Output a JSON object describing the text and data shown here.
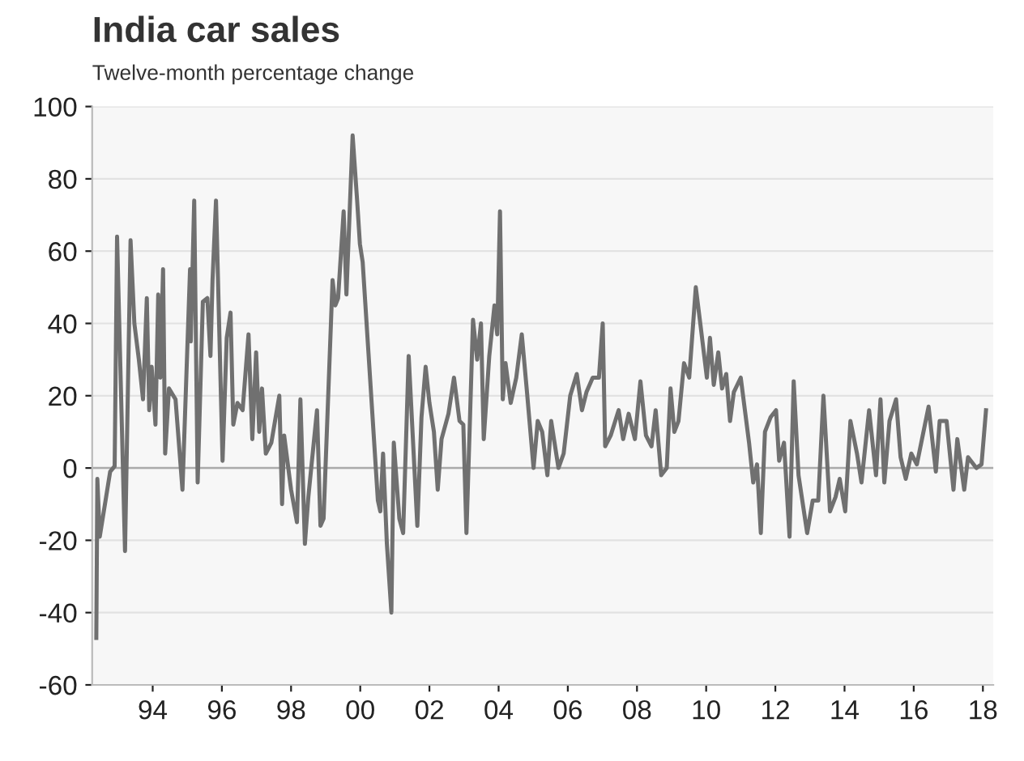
{
  "chart_data": {
    "type": "line",
    "title": "India car sales",
    "subtitle": "Twelve-month percentage change",
    "x": [
      1992.37,
      1992.4,
      1992.47,
      1992.77,
      1992.9,
      1992.97,
      1993.2,
      1993.36,
      1993.47,
      1993.6,
      1993.72,
      1993.83,
      1993.9,
      1993.97,
      1994.08,
      1994.16,
      1994.22,
      1994.3,
      1994.36,
      1994.47,
      1994.66,
      1994.86,
      1995.08,
      1995.1,
      1995.2,
      1995.3,
      1995.45,
      1995.58,
      1995.67,
      1995.73,
      1995.83,
      1996.02,
      1996.14,
      1996.25,
      1996.33,
      1996.45,
      1996.6,
      1996.77,
      1996.88,
      1996.99,
      1997.08,
      1997.16,
      1997.27,
      1997.43,
      1997.66,
      1997.74,
      1997.8,
      1998.0,
      1998.17,
      1998.27,
      1998.4,
      1998.5,
      1998.75,
      1998.85,
      1998.94,
      1999.2,
      1999.28,
      1999.36,
      1999.52,
      1999.6,
      1999.78,
      1999.91,
      1999.99,
      2000.07,
      2000.51,
      2000.58,
      2000.66,
      2000.77,
      2000.9,
      2000.97,
      2001.13,
      2001.24,
      2001.4,
      2001.56,
      2001.65,
      2001.77,
      2001.89,
      2002.0,
      2002.13,
      2002.24,
      2002.35,
      2002.55,
      2002.71,
      2002.87,
      2002.98,
      2003.07,
      2003.26,
      2003.38,
      2003.49,
      2003.57,
      2003.73,
      2003.88,
      2003.96,
      2004.04,
      2004.12,
      2004.2,
      2004.35,
      2004.51,
      2004.67,
      2004.82,
      2005.01,
      2005.13,
      2005.26,
      2005.41,
      2005.52,
      2005.73,
      2005.88,
      2006.07,
      2006.26,
      2006.41,
      2006.54,
      2006.72,
      2006.9,
      2007.01,
      2007.08,
      2007.24,
      2007.47,
      2007.6,
      2007.76,
      2007.94,
      2008.1,
      2008.26,
      2008.42,
      2008.54,
      2008.7,
      2008.86,
      2008.97,
      2009.08,
      2009.2,
      2009.36,
      2009.51,
      2009.7,
      2009.83,
      2010.02,
      2010.11,
      2010.22,
      2010.35,
      2010.46,
      2010.58,
      2010.69,
      2010.8,
      2011.0,
      2011.24,
      2011.36,
      2011.47,
      2011.58,
      2011.7,
      2011.86,
      2012.02,
      2012.11,
      2012.25,
      2012.41,
      2012.53,
      2012.67,
      2012.92,
      2013.08,
      2013.24,
      2013.39,
      2013.58,
      2013.74,
      2013.86,
      2014.02,
      2014.17,
      2014.36,
      2014.49,
      2014.71,
      2014.91,
      2015.04,
      2015.15,
      2015.3,
      2015.49,
      2015.62,
      2015.77,
      2015.93,
      2016.09,
      2016.43,
      2016.64,
      2016.75,
      2016.95,
      2017.15,
      2017.26,
      2017.46,
      2017.57,
      2017.81,
      2017.96,
      2018.09
    ],
    "series": [
      {
        "color": "#707070",
        "values": [
          -47,
          -3,
          -19,
          -1,
          0.5,
          64,
          -23,
          63,
          40,
          30,
          19,
          47,
          16,
          28,
          12,
          48,
          25,
          55,
          4,
          22,
          19,
          -6,
          55,
          35,
          74,
          -4,
          46,
          47,
          31,
          52,
          74,
          2,
          36,
          43,
          12,
          18,
          16,
          37,
          8,
          32,
          10,
          22,
          4,
          7,
          20,
          -10,
          9,
          -6,
          -15,
          19,
          -21,
          -8,
          16,
          -16,
          -14,
          52,
          45,
          47,
          71,
          48,
          92,
          74,
          62,
          57,
          -9,
          -12,
          4,
          -21,
          -40,
          7,
          -14,
          -18,
          31,
          1,
          -16,
          14,
          28,
          18,
          10,
          -6,
          8,
          15,
          25,
          13,
          12,
          -18,
          41,
          30,
          40,
          8,
          31,
          45,
          37,
          71,
          19,
          29,
          18,
          25,
          37,
          21,
          0,
          13,
          10,
          -2,
          13,
          0,
          4,
          20,
          26,
          16,
          21,
          25,
          25,
          40,
          6,
          9,
          16,
          8,
          15,
          8,
          24,
          9,
          6,
          16,
          -2,
          0,
          22,
          10,
          13,
          29,
          25,
          50,
          40,
          25,
          36,
          23,
          32,
          22,
          26,
          13,
          21,
          25,
          7,
          -4,
          1,
          -18,
          10,
          14,
          16,
          2,
          7,
          -19,
          24,
          -2,
          -18,
          -9,
          -9,
          20,
          -12,
          -8,
          -3,
          -12,
          13,
          4,
          -4,
          16,
          -2,
          19,
          -4,
          13,
          19,
          3,
          -3,
          4,
          1,
          17,
          -1,
          13,
          13,
          -6,
          8,
          -6,
          3,
          0,
          1,
          16
        ]
      }
    ],
    "xlim": [
      1992.25,
      2018.3
    ],
    "xticks": [
      {
        "value": 1994,
        "label": "94"
      },
      {
        "value": 1996,
        "label": "96"
      },
      {
        "value": 1998,
        "label": "98"
      },
      {
        "value": 2000,
        "label": "00"
      },
      {
        "value": 2002,
        "label": "02"
      },
      {
        "value": 2004,
        "label": "04"
      },
      {
        "value": 2006,
        "label": "06"
      },
      {
        "value": 2008,
        "label": "08"
      },
      {
        "value": 2010,
        "label": "10"
      },
      {
        "value": 2012,
        "label": "12"
      },
      {
        "value": 2014,
        "label": "14"
      },
      {
        "value": 2016,
        "label": "16"
      },
      {
        "value": 2018,
        "label": "18"
      }
    ],
    "ylim": [
      -60,
      100
    ],
    "yticks": [
      -60,
      -40,
      -20,
      0,
      20,
      40,
      60,
      80,
      100
    ],
    "grid": "y",
    "legend": false,
    "marker": "none",
    "line_style": "solid"
  }
}
